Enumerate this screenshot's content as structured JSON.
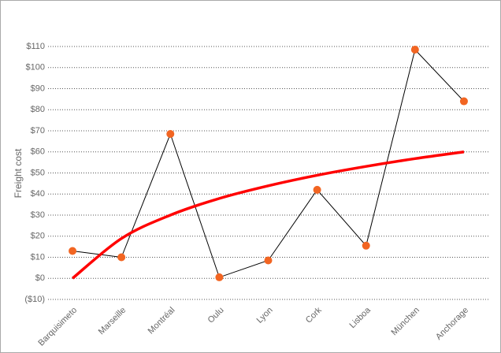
{
  "chart_data": {
    "type": "line",
    "y_label": "Freight cost",
    "categories": [
      "Barquisimeto",
      "Marseille",
      "Montréal",
      "Oulu",
      "Lyon",
      "Cork",
      "Lisboa",
      "München",
      "Anchorage"
    ],
    "series": [
      {
        "color": "#000000",
        "marker_color": "#f26522",
        "values": [
          13,
          10,
          68.5,
          0.5,
          8.5,
          42,
          15.5,
          108.5,
          84
        ]
      },
      {
        "color": "#ff0000",
        "curve": "smooth",
        "values": [
          0,
          18.9,
          30,
          37.9,
          43.9,
          48.9,
          53.1,
          56.8,
          60
        ]
      }
    ],
    "ylim": [
      -10,
      110
    ],
    "yticks": [
      {
        "value": -10,
        "label": "($10)"
      },
      {
        "value": 0,
        "label": "$0"
      },
      {
        "value": 10,
        "label": "$10"
      },
      {
        "value": 20,
        "label": "$20"
      },
      {
        "value": 30,
        "label": "$30"
      },
      {
        "value": 40,
        "label": "$40"
      },
      {
        "value": 50,
        "label": "$50"
      },
      {
        "value": 60,
        "label": "$60"
      },
      {
        "value": 70,
        "label": "$70"
      },
      {
        "value": 80,
        "label": "$80"
      },
      {
        "value": 90,
        "label": "$90"
      },
      {
        "value": 100,
        "label": "$100"
      },
      {
        "value": 110,
        "label": "$110"
      }
    ],
    "grid": true
  }
}
